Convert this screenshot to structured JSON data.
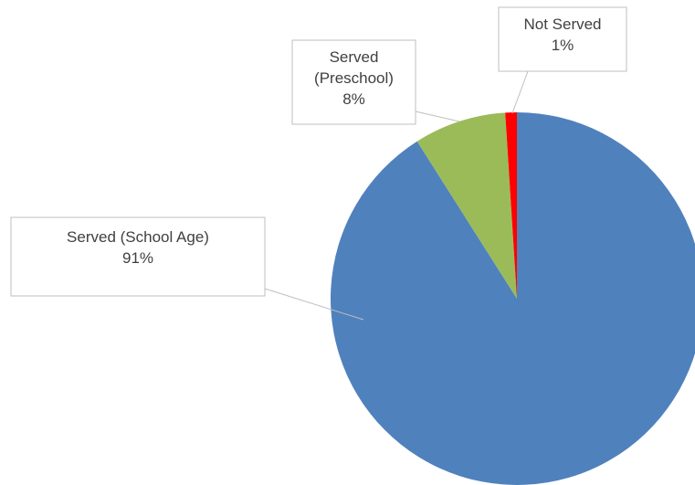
{
  "chart_data": {
    "type": "pie",
    "title": "",
    "legend": "none",
    "start_angle_deg": 0,
    "direction": "clockwise",
    "slices": [
      {
        "name": "Served (School Age)",
        "value": 91,
        "label_lines": [
          "Served (School Age)",
          "91%"
        ],
        "color": "#4F81BD"
      },
      {
        "name": "Served (Preschool)",
        "value": 8,
        "label_lines": [
          "Served",
          "(Preschool)",
          "8%"
        ],
        "color": "#9BBB59"
      },
      {
        "name": "Not Served",
        "value": 1,
        "label_lines": [
          "Not Served",
          "1%"
        ],
        "color": "#FF0000"
      }
    ]
  }
}
